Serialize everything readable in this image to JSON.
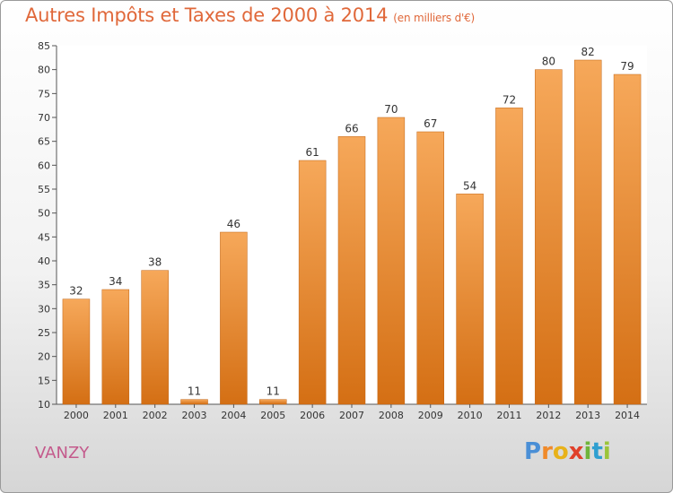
{
  "title": "Autres Impôts et Taxes de 2000 à 2014",
  "subtitle": "(en milliers d'€)",
  "city": "VANZY",
  "logo": {
    "letters": [
      "P",
      "r",
      "o",
      "x",
      "i",
      "t",
      "i"
    ],
    "colors": [
      "#4a8fd6",
      "#f08a2a",
      "#e8b21a",
      "#e0402a",
      "#6fb43a",
      "#2f9fd0",
      "#9cc43a"
    ]
  },
  "colors": {
    "bar_light": "#f6a85a",
    "bar_dark": "#d46f14",
    "title": "#e0683a",
    "city": "#c45a8c"
  },
  "chart_data": {
    "type": "bar",
    "categories": [
      "2000",
      "2001",
      "2002",
      "2003",
      "2004",
      "2005",
      "2006",
      "2007",
      "2008",
      "2009",
      "2010",
      "2011",
      "2012",
      "2013",
      "2014"
    ],
    "values": [
      32,
      34,
      38,
      11,
      46,
      11,
      61,
      66,
      70,
      67,
      54,
      72,
      80,
      82,
      79
    ],
    "ylim": [
      10,
      85
    ],
    "yticks": [
      10,
      15,
      20,
      25,
      30,
      35,
      40,
      45,
      50,
      55,
      60,
      65,
      70,
      75,
      80,
      85
    ],
    "grid": false
  }
}
